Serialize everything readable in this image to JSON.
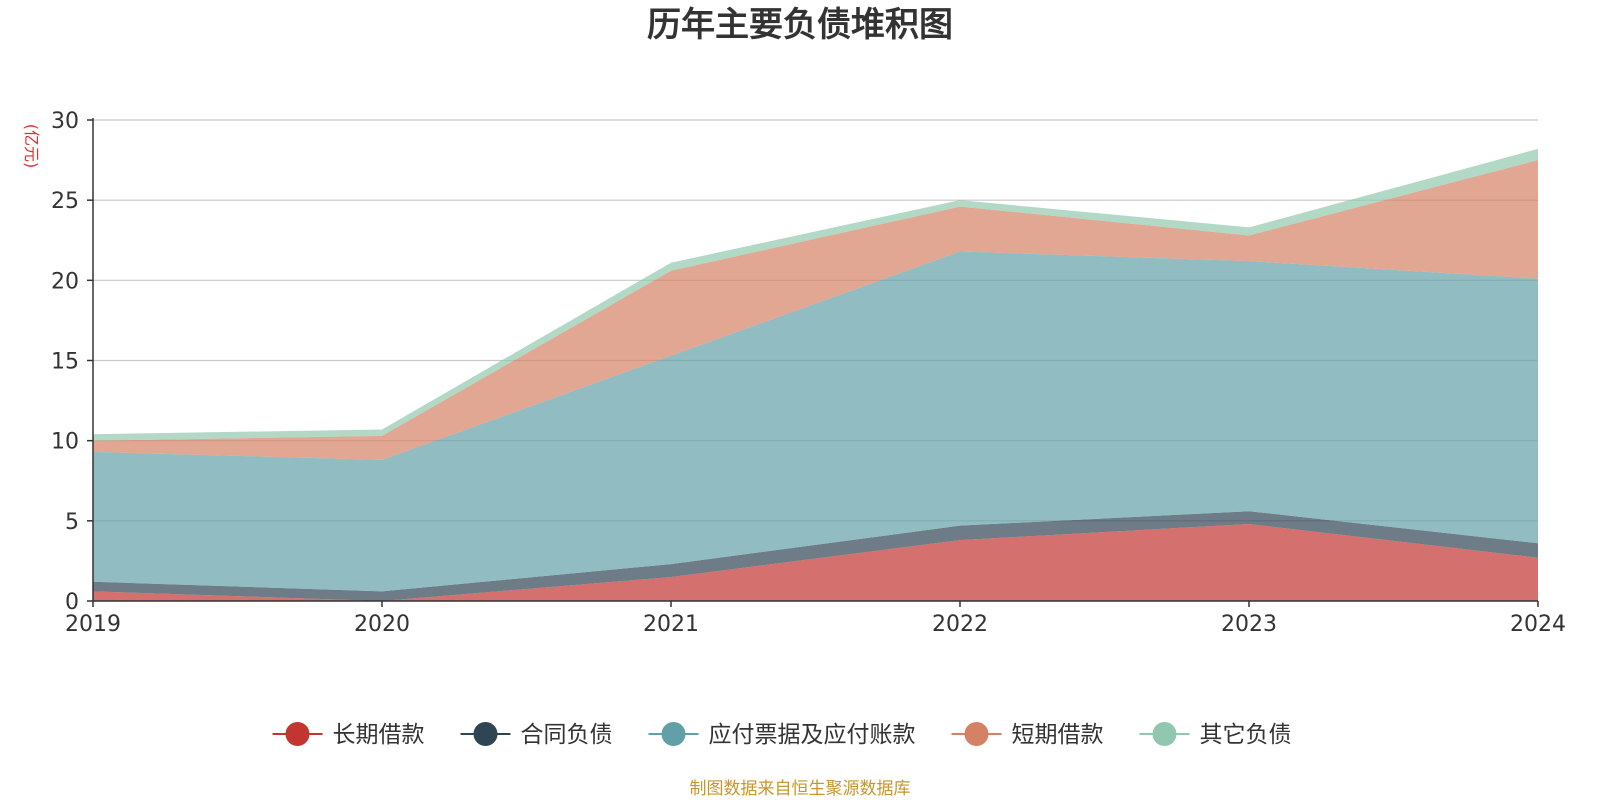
{
  "chart_data": {
    "type": "area",
    "stacked": true,
    "title": "历年主要负债堆积图",
    "ylabel": "(亿元)",
    "xlabel": "",
    "categories": [
      "2019",
      "2020",
      "2021",
      "2022",
      "2023",
      "2024"
    ],
    "ylim": [
      0,
      30
    ],
    "yticks": [
      0,
      5,
      10,
      15,
      20,
      25,
      30
    ],
    "grid": true,
    "legend_position": "bottom",
    "series": [
      {
        "name": "长期借款",
        "color": "#c23531",
        "values": [
          0.6,
          0.0,
          1.5,
          3.8,
          4.8,
          2.7
        ]
      },
      {
        "name": "合同负债",
        "color": "#2f4554",
        "values": [
          0.6,
          0.6,
          0.8,
          0.9,
          0.8,
          0.9
        ]
      },
      {
        "name": "应付票据及应付账款",
        "color": "#61a0a8",
        "values": [
          8.1,
          8.2,
          13.0,
          17.1,
          15.6,
          16.5
        ]
      },
      {
        "name": "短期借款",
        "color": "#d48265",
        "values": [
          0.7,
          1.5,
          5.3,
          2.8,
          1.6,
          7.4
        ]
      },
      {
        "name": "其它负债",
        "color": "#91c7ae",
        "values": [
          0.4,
          0.4,
          0.5,
          0.4,
          0.5,
          0.7
        ]
      }
    ],
    "source_note": "制图数据来自恒生聚源数据库"
  }
}
